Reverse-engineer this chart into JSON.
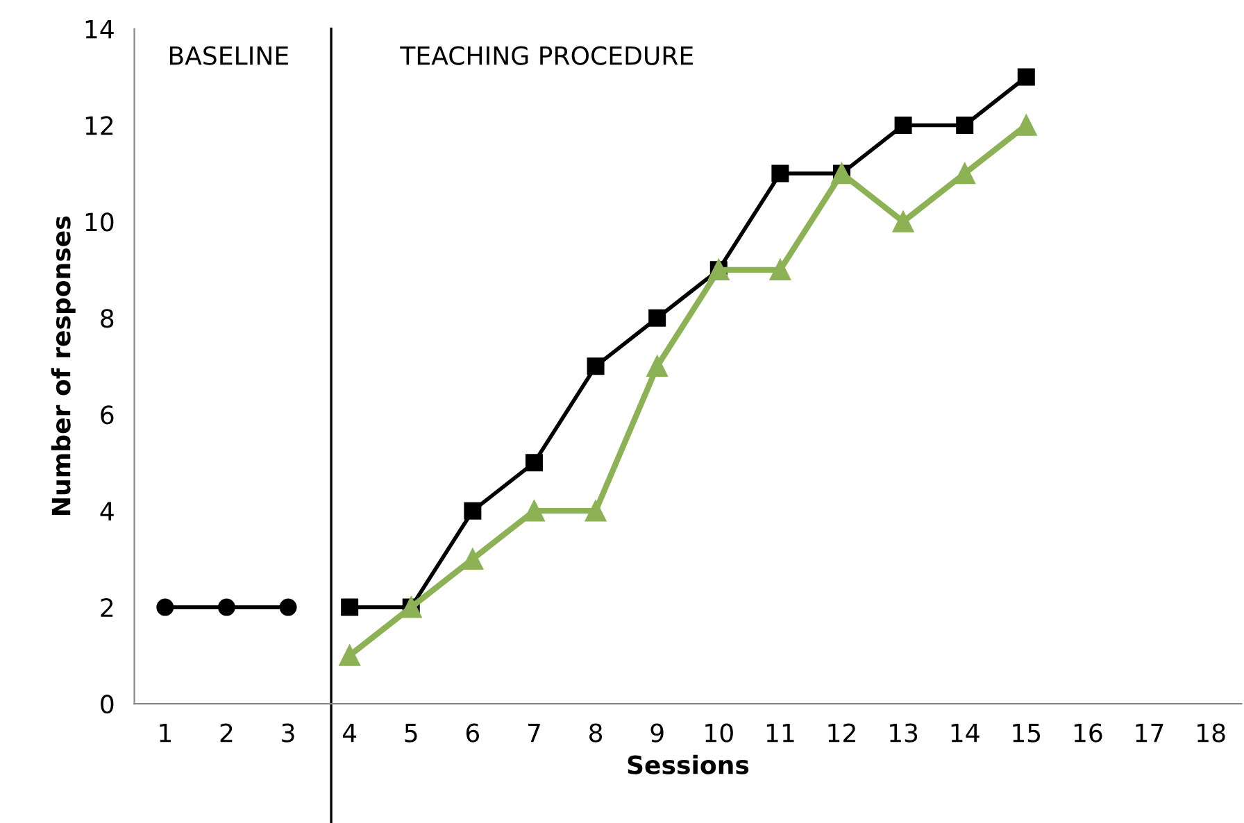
{
  "chart_data": {
    "type": "line",
    "xlabel": "Sessions",
    "ylabel": "Number of responses",
    "xlim": [
      0.5,
      18.5
    ],
    "xticks": [
      1,
      2,
      3,
      4,
      5,
      6,
      7,
      8,
      9,
      10,
      11,
      12,
      13,
      14,
      15,
      16,
      17,
      18
    ],
    "ylim": [
      0,
      14
    ],
    "yticks": [
      0,
      2,
      4,
      6,
      8,
      10,
      12,
      14
    ],
    "grid": false,
    "legend": false,
    "series": [
      {
        "color": "#000000",
        "marker": "circle",
        "x": [
          1,
          2,
          3
        ],
        "values": [
          2,
          2,
          2
        ]
      },
      {
        "color": "#000000",
        "marker": "square",
        "x": [
          4,
          5,
          6,
          7,
          8,
          9,
          10,
          11,
          12,
          13,
          14,
          15
        ],
        "values": [
          2,
          2,
          4,
          5,
          7,
          8,
          9,
          11,
          11,
          12,
          12,
          13
        ]
      },
      {
        "color": "#8db255",
        "marker": "triangle",
        "x": [
          4,
          5,
          6,
          7,
          8,
          9,
          10,
          11,
          12,
          13,
          14,
          15
        ],
        "values": [
          1,
          2,
          3,
          4,
          4,
          7,
          9,
          9,
          11,
          10,
          11,
          12
        ]
      }
    ],
    "ref_lines": [
      {
        "axis": "x",
        "value": 3.7,
        "color": "#000000"
      }
    ],
    "annotations": [
      "BASELINE",
      "TEACHING PROCEDURE"
    ]
  }
}
